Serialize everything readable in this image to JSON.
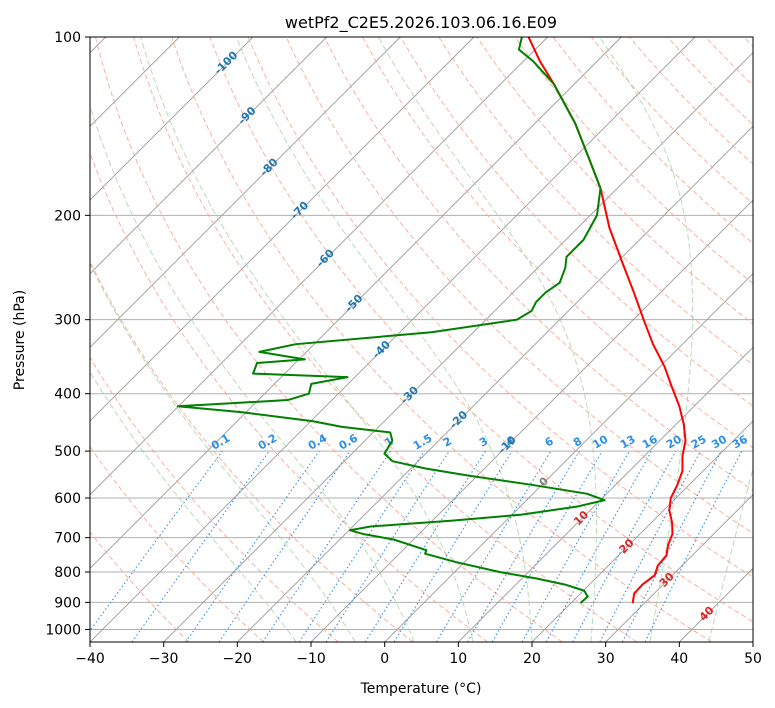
{
  "chart_data": {
    "type": "line",
    "subtype": "skew-T log-P diagram",
    "title": "wetPf2_C2E5.2026.103.06.16.E09",
    "xlabel": "Temperature (°C)",
    "ylabel": "Pressure (hPa)",
    "xlim": [
      -40,
      50
    ],
    "ylim": [
      1050,
      100
    ],
    "y_scale": "log",
    "x_ticks": [
      -40,
      -30,
      -20,
      -10,
      0,
      10,
      20,
      30,
      40,
      50
    ],
    "x_tick_labels": [
      "−40",
      "−30",
      "−20",
      "−10",
      "0",
      "10",
      "20",
      "30",
      "40",
      "50"
    ],
    "y_ticks": [
      100,
      200,
      300,
      400,
      500,
      600,
      700,
      800,
      900,
      1000
    ],
    "y_tick_labels": [
      "100",
      "200",
      "300",
      "400",
      "500",
      "600",
      "700",
      "800",
      "900",
      "1000"
    ],
    "grid": true,
    "series": [
      {
        "name": "temperature",
        "color": "#ff0000",
        "points": [
          {
            "p": 900,
            "t": 28.3
          },
          {
            "p": 870,
            "t": 27.3
          },
          {
            "p": 840,
            "t": 27.2
          },
          {
            "p": 810,
            "t": 27.6
          },
          {
            "p": 780,
            "t": 26.7
          },
          {
            "p": 750,
            "t": 26.5
          },
          {
            "p": 720,
            "t": 25.3
          },
          {
            "p": 690,
            "t": 24.4
          },
          {
            "p": 660,
            "t": 22.8
          },
          {
            "p": 630,
            "t": 20.8
          },
          {
            "p": 600,
            "t": 19.3
          },
          {
            "p": 570,
            "t": 18.4
          },
          {
            "p": 540,
            "t": 17.2
          },
          {
            "p": 510,
            "t": 15.2
          },
          {
            "p": 480,
            "t": 13.5
          },
          {
            "p": 450,
            "t": 11.0
          },
          {
            "p": 420,
            "t": 8.0
          },
          {
            "p": 390,
            "t": 4.4
          },
          {
            "p": 360,
            "t": 0.6
          },
          {
            "p": 330,
            "t": -4.0
          },
          {
            "p": 300,
            "t": -8.6
          },
          {
            "p": 270,
            "t": -13.6
          },
          {
            "p": 240,
            "t": -19.3
          },
          {
            "p": 210,
            "t": -25.7
          },
          {
            "p": 180,
            "t": -32.3
          },
          {
            "p": 160,
            "t": -38.0
          },
          {
            "p": 140,
            "t": -44.5
          },
          {
            "p": 120,
            "t": -52.8
          },
          {
            "p": 110,
            "t": -57.7
          },
          {
            "p": 100,
            "t": -62.6
          }
        ]
      },
      {
        "name": "dewpoint",
        "color": "#008000",
        "points": [
          {
            "p": 900,
            "t": 21.3
          },
          {
            "p": 880,
            "t": 21.4
          },
          {
            "p": 860,
            "t": 20.1
          },
          {
            "p": 840,
            "t": 16.7
          },
          {
            "p": 820,
            "t": 11.9
          },
          {
            "p": 800,
            "t": 6.1
          },
          {
            "p": 770,
            "t": -1.1
          },
          {
            "p": 745,
            "t": -6.5
          },
          {
            "p": 735,
            "t": -6.8
          },
          {
            "p": 705,
            "t": -12.7
          },
          {
            "p": 690,
            "t": -17.6
          },
          {
            "p": 680,
            "t": -19.9
          },
          {
            "p": 670,
            "t": -17.5
          },
          {
            "p": 655,
            "t": -7.3
          },
          {
            "p": 640,
            "t": 1.3
          },
          {
            "p": 620,
            "t": 7.8
          },
          {
            "p": 605,
            "t": 10.6
          },
          {
            "p": 590,
            "t": 7.3
          },
          {
            "p": 570,
            "t": -1.4
          },
          {
            "p": 550,
            "t": -11.2
          },
          {
            "p": 535,
            "t": -18.0
          },
          {
            "p": 520,
            "t": -23.5
          },
          {
            "p": 505,
            "t": -25.6
          },
          {
            "p": 480,
            "t": -26.3
          },
          {
            "p": 465,
            "t": -27.7
          },
          {
            "p": 455,
            "t": -35.0
          },
          {
            "p": 445,
            "t": -39.8
          },
          {
            "p": 430,
            "t": -50.5
          },
          {
            "p": 420,
            "t": -60.1
          },
          {
            "p": 410,
            "t": -46.0
          },
          {
            "p": 400,
            "t": -44.0
          },
          {
            "p": 385,
            "t": -45.0
          },
          {
            "p": 375,
            "t": -41.0
          },
          {
            "p": 370,
            "t": -54.3
          },
          {
            "p": 355,
            "t": -55.2
          },
          {
            "p": 350,
            "t": -49.2
          },
          {
            "p": 340,
            "t": -56.4
          },
          {
            "p": 330,
            "t": -52.5
          },
          {
            "p": 315,
            "t": -35.7
          },
          {
            "p": 300,
            "t": -25.8
          },
          {
            "p": 290,
            "t": -25.0
          },
          {
            "p": 280,
            "t": -25.6
          },
          {
            "p": 270,
            "t": -25.6
          },
          {
            "p": 260,
            "t": -25.0
          },
          {
            "p": 245,
            "t": -26.3
          },
          {
            "p": 235,
            "t": -27.6
          },
          {
            "p": 220,
            "t": -27.6
          },
          {
            "p": 200,
            "t": -29.1
          },
          {
            "p": 180,
            "t": -32.3
          },
          {
            "p": 160,
            "t": -38.0
          },
          {
            "p": 140,
            "t": -44.5
          },
          {
            "p": 120,
            "t": -52.8
          },
          {
            "p": 110,
            "t": -58.6
          },
          {
            "p": 105,
            "t": -62.2
          },
          {
            "p": 100,
            "t": -63.5
          }
        ]
      }
    ],
    "mixing_ratio_labels": [
      "0.1",
      "0.2",
      "0.4",
      "0.6",
      "1",
      "1.5",
      "2",
      "3",
      "4",
      "6",
      "8",
      "10",
      "13",
      "16",
      "20",
      "25",
      "30",
      "36"
    ],
    "isotherm_labels": [
      "-100",
      "-90",
      "-80",
      "-70",
      "-60",
      "-50",
      "-40",
      "-30",
      "-20",
      "-10",
      "0",
      "10",
      "20",
      "30",
      "40"
    ]
  }
}
